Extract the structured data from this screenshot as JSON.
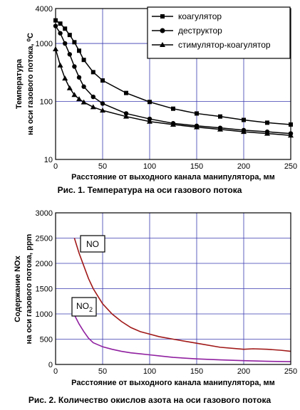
{
  "chart_data": [
    {
      "type": "line",
      "title": "",
      "caption": "Рис. 1. Температура на оси газового потока",
      "xlabel": "Расстояние от выходного канала манипулятора, мм",
      "ylabel_lines": [
        "Температура",
        "на оси газового потока, ⁰С"
      ],
      "xlim": [
        0,
        250
      ],
      "ylim": [
        10,
        4000
      ],
      "y_scale": "log",
      "x_ticks": [
        0,
        50,
        100,
        150,
        200,
        250
      ],
      "y_ticks": [
        {
          "value": 10,
          "label": "10"
        },
        {
          "value": 100,
          "label": "100"
        },
        {
          "value": 1000,
          "label": "1000"
        },
        {
          "value": 4000,
          "label": "4000"
        }
      ],
      "grid": true,
      "legend_position": "top-right",
      "series": [
        {
          "name": "коагулятор",
          "marker": "square",
          "x": [
            0,
            5,
            10,
            15,
            20,
            25,
            30,
            40,
            50,
            75,
            100,
            125,
            150,
            175,
            200,
            225,
            250
          ],
          "y": [
            2500,
            2200,
            1800,
            1400,
            1050,
            750,
            520,
            320,
            230,
            140,
            98,
            75,
            62,
            55,
            48,
            43,
            40
          ]
        },
        {
          "name": "деструктор",
          "marker": "circle",
          "x": [
            0,
            5,
            10,
            15,
            20,
            25,
            30,
            40,
            50,
            75,
            100,
            125,
            150,
            175,
            200,
            225,
            250
          ],
          "y": [
            2000,
            1500,
            1000,
            650,
            400,
            260,
            180,
            120,
            92,
            62,
            50,
            42,
            38,
            35,
            32,
            30,
            28
          ]
        },
        {
          "name": "стимулятор-коагулятор",
          "marker": "triangle",
          "x": [
            0,
            5,
            10,
            15,
            20,
            25,
            30,
            40,
            50,
            75,
            100,
            125,
            150,
            175,
            200,
            225,
            250
          ],
          "y": [
            800,
            420,
            250,
            170,
            130,
            110,
            97,
            80,
            70,
            55,
            45,
            40,
            36,
            33,
            30,
            28,
            26
          ]
        }
      ]
    },
    {
      "type": "line",
      "title": "",
      "caption": "Рис. 2. Количество окислов азота на оси газового потока",
      "xlabel": "Расстояние от выходного канала манипулятора, мм",
      "ylabel_lines": [
        "Содержание NOx",
        "на оси газового потока, ppm"
      ],
      "xlim": [
        0,
        250
      ],
      "ylim": [
        0,
        3000
      ],
      "x_ticks": [
        0,
        50,
        100,
        150,
        200,
        250
      ],
      "y_ticks": [
        0,
        500,
        1000,
        1500,
        2000,
        2500,
        3000
      ],
      "grid": true,
      "annotations": [
        {
          "text": "NO",
          "series": "NO"
        },
        {
          "text": "NO",
          "sub": "2",
          "series": "NO2"
        }
      ],
      "series": [
        {
          "name": "NO",
          "color": "#a01818",
          "x": [
            20,
            25,
            30,
            35,
            40,
            45,
            50,
            60,
            70,
            80,
            90,
            100,
            110,
            125,
            150,
            175,
            200,
            210,
            225,
            240,
            250
          ],
          "y": [
            2500,
            2200,
            1950,
            1700,
            1500,
            1350,
            1200,
            1000,
            850,
            730,
            650,
            600,
            550,
            500,
            420,
            340,
            300,
            310,
            300,
            280,
            260
          ]
        },
        {
          "name": "NO2",
          "color": "#9020a0",
          "x": [
            20,
            25,
            30,
            35,
            40,
            45,
            50,
            60,
            70,
            80,
            90,
            100,
            110,
            125,
            150,
            175,
            200,
            225,
            250
          ],
          "y": [
            980,
            800,
            650,
            520,
            430,
            390,
            350,
            300,
            260,
            230,
            210,
            190,
            170,
            140,
            110,
            90,
            75,
            62,
            55
          ]
        }
      ]
    }
  ],
  "colors": {
    "frame": "#000000",
    "grid": "#3a3ab0",
    "series_black": "#000000"
  }
}
